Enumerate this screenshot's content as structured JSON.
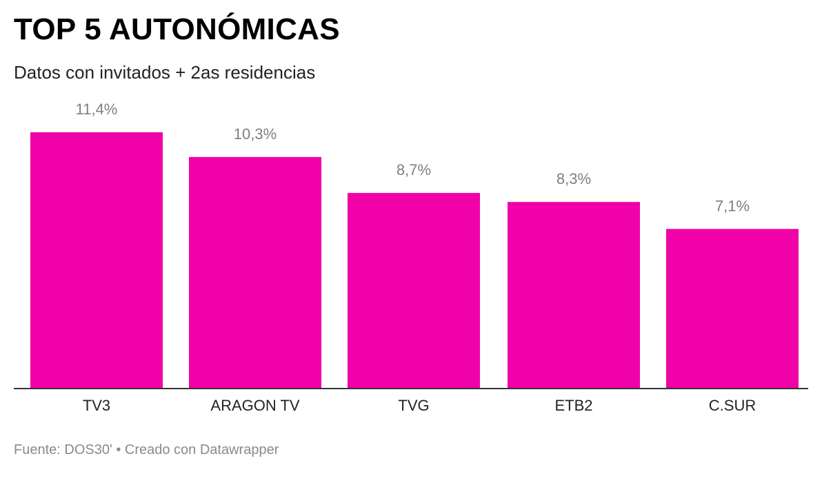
{
  "header": {
    "title": "TOP 5 AUTONÓMICAS",
    "subtitle": "Datos con invitados + 2as residencias"
  },
  "footer": {
    "source": "Fuente: DOS30' • Creado con Datawrapper"
  },
  "colors": {
    "bar": "#f002a8",
    "value_label": "#7f7f7f",
    "axis_label": "#222222",
    "baseline": "#333333"
  },
  "chart_data": {
    "type": "bar",
    "categories": [
      "TV3",
      "ARAGON TV",
      "TVG",
      "ETB2",
      "C.SUR"
    ],
    "values": [
      11.4,
      10.3,
      8.7,
      8.3,
      7.1
    ],
    "value_labels": [
      "11,4%",
      "10,3%",
      "8,7%",
      "8,3%",
      "7,1%"
    ],
    "ylim": [
      0,
      11.4
    ],
    "grid": false,
    "legend": "none"
  }
}
